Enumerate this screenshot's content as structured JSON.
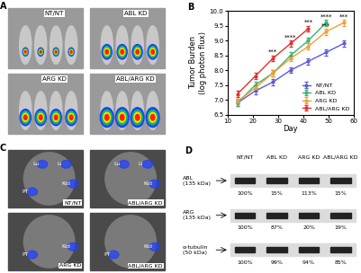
{
  "panel_labels": [
    "A",
    "B",
    "C",
    "D"
  ],
  "chart_data": {
    "type": "line",
    "x": [
      14,
      21,
      28,
      35,
      42,
      49,
      56
    ],
    "x_label": "Day",
    "y_label": "Tumor Burden\n(log photon flux)",
    "xlim": [
      10,
      60
    ],
    "xticks": [
      10,
      20,
      30,
      40,
      50,
      60
    ],
    "ylim": [
      6.5,
      10.0
    ],
    "yticks": [
      6.5,
      7.0,
      7.5,
      8.0,
      8.5,
      9.0,
      9.5,
      10.0
    ],
    "grid": false,
    "legend": "lower right",
    "marker": "o",
    "line_style": "solid",
    "series": [
      {
        "name": "NT/NT",
        "color": "#5b5bd6",
        "values": [
          6.9,
          7.3,
          7.6,
          8.0,
          8.3,
          8.6,
          8.9
        ],
        "errors": [
          0.1,
          0.1,
          0.1,
          0.1,
          0.1,
          0.1,
          0.1
        ],
        "stars": [
          null,
          null,
          null,
          null,
          null,
          null,
          null
        ]
      },
      {
        "name": "ABL KD",
        "color": "#3cb371",
        "values": [
          6.9,
          7.5,
          7.9,
          8.5,
          9.0,
          9.6,
          null
        ],
        "errors": [
          0.1,
          0.1,
          0.1,
          0.1,
          0.1,
          0.1,
          null
        ],
        "stars": [
          null,
          null,
          null,
          null,
          null,
          "****",
          null
        ]
      },
      {
        "name": "ARG KD",
        "color": "#f0a030",
        "values": [
          6.95,
          7.4,
          7.9,
          8.4,
          8.8,
          9.3,
          9.6
        ],
        "errors": [
          0.1,
          0.1,
          0.1,
          0.1,
          0.1,
          0.1,
          0.1
        ],
        "stars": [
          null,
          null,
          null,
          null,
          null,
          "***",
          "***"
        ]
      },
      {
        "name": "ABL/ARG KD",
        "color": "#e03030",
        "values": [
          7.2,
          7.8,
          8.4,
          8.9,
          9.4,
          null,
          null
        ],
        "errors": [
          0.1,
          0.1,
          0.1,
          0.1,
          0.1,
          null,
          null
        ],
        "stars": [
          null,
          null,
          "***",
          "****",
          "***",
          null,
          null
        ]
      }
    ]
  },
  "panel_a": {
    "images": [
      "NT/NT",
      "ABL KD",
      "ARG KD",
      "ABL/ARG KD"
    ]
  },
  "panel_c": {
    "images": [
      {
        "label": "NT/NT",
        "organs": [
          "Lu",
          "Li",
          "PT",
          "Kid"
        ]
      },
      {
        "label": "ABL/ARG KD",
        "organs": [
          "Lu",
          "Li",
          null,
          "Kid"
        ]
      },
      {
        "label": "ARG KD",
        "organs": [
          null,
          null,
          "PT",
          "Kid"
        ]
      },
      {
        "label": "ABL/ARG KD",
        "organs": [
          null,
          null,
          "PT",
          "Kid"
        ]
      }
    ]
  },
  "panel_d": {
    "columns": [
      "NT/NT",
      "ABL KD",
      "ARG KD",
      "ABL/ARG KD"
    ],
    "rows": [
      {
        "label": "ABL\n(135 kDa)",
        "percents": [
          "100%",
          "15%",
          "113%",
          "15%"
        ]
      },
      {
        "label": "ARG\n(135 kDa)",
        "percents": [
          "100%",
          "87%",
          "20%",
          "19%"
        ]
      },
      {
        "label": "α-tubulin\n(50 kDa)",
        "percents": [
          "100%",
          "99%",
          "94%",
          "85%"
        ]
      }
    ]
  }
}
